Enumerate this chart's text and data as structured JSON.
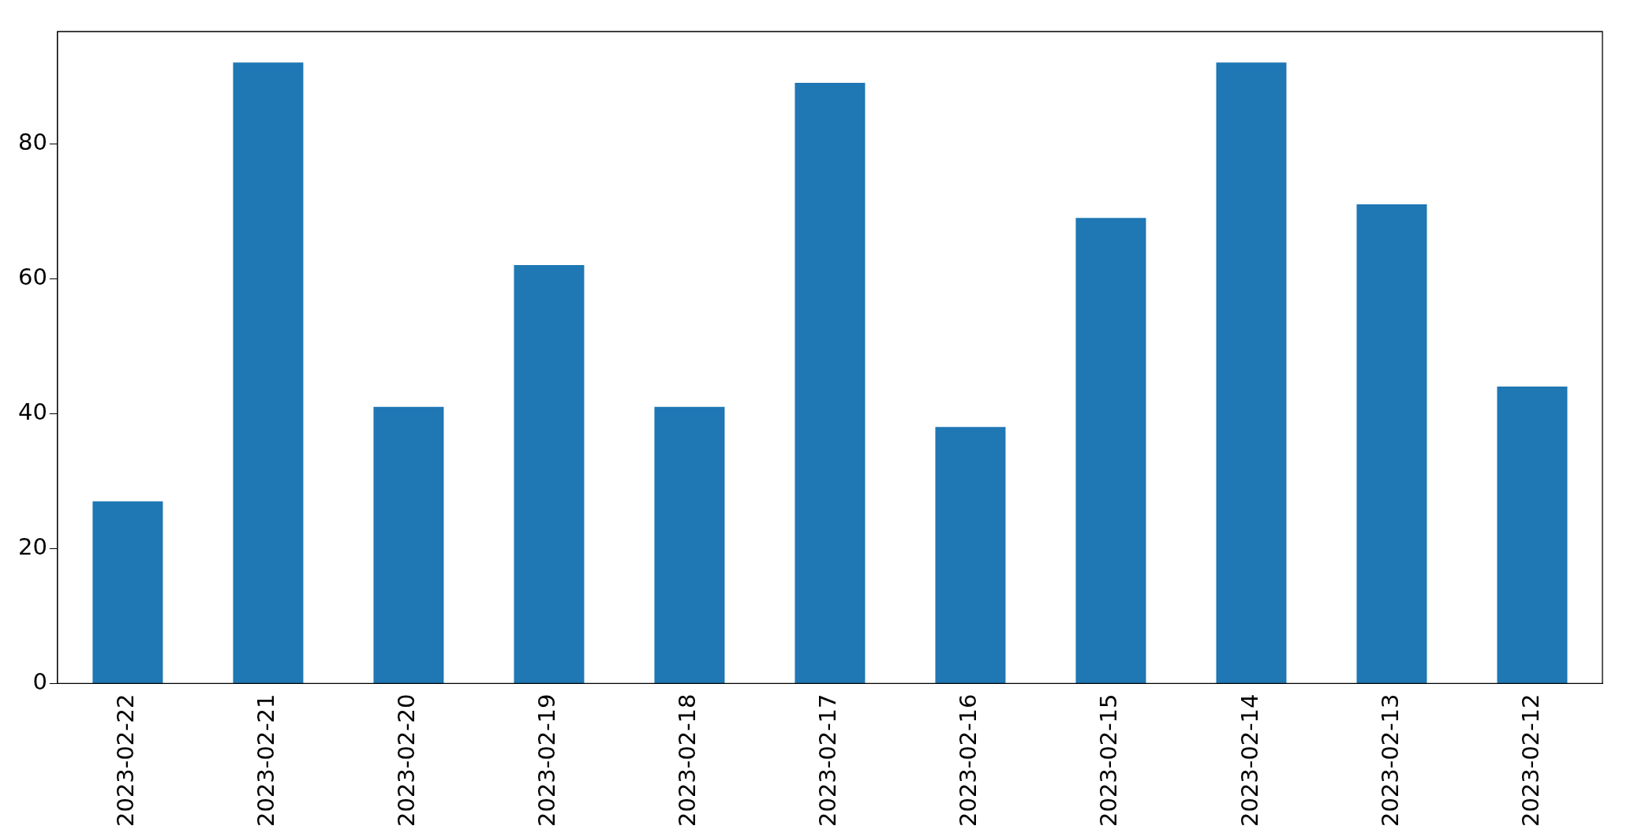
{
  "chart_data": {
    "type": "bar",
    "categories": [
      "2023-02-22",
      "2023-02-21",
      "2023-02-20",
      "2023-02-19",
      "2023-02-18",
      "2023-02-17",
      "2023-02-16",
      "2023-02-15",
      "2023-02-14",
      "2023-02-13",
      "2023-02-12"
    ],
    "values": [
      27,
      92,
      41,
      62,
      41,
      89,
      38,
      69,
      92,
      71,
      44
    ],
    "color": "#1f77b4",
    "ylim": [
      0,
      96.6
    ],
    "yticks": [
      0,
      20,
      40,
      60,
      80
    ],
    "grid": false,
    "legend": false
  }
}
